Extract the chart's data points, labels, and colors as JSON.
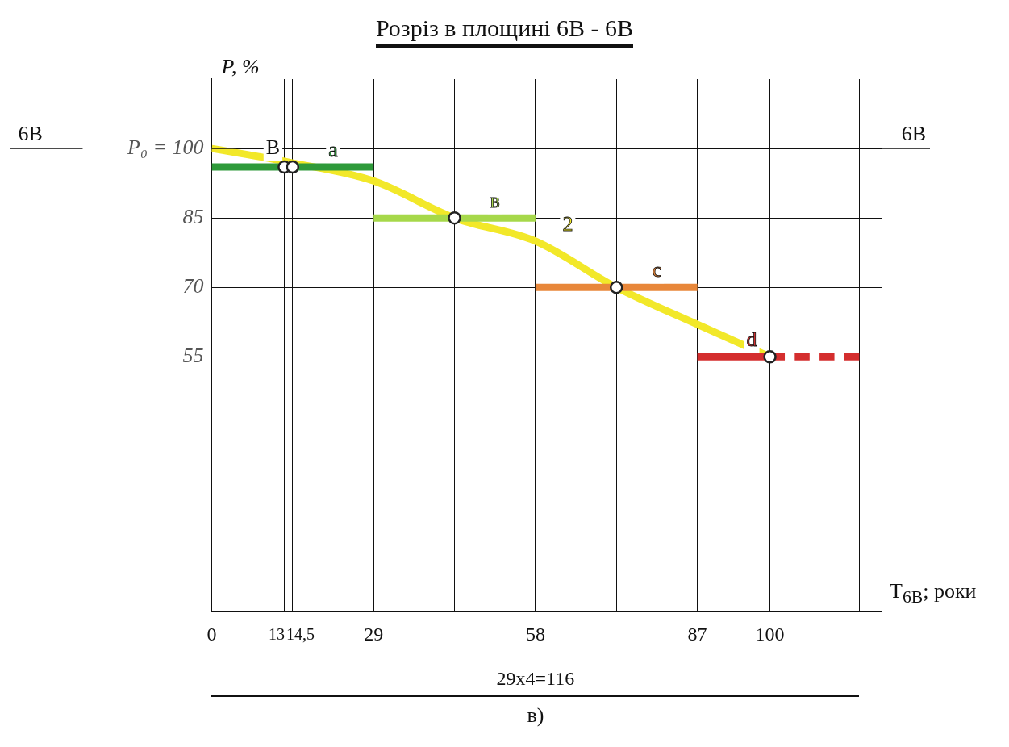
{
  "chart_data": {
    "type": "line",
    "title": "Розріз в площині 6В - 6В",
    "xlabel": "T$_{6В}$; роки",
    "ylabel": "P, %",
    "xlim": [
      0,
      120
    ],
    "xticks": [
      0,
      13,
      {
        "value": 14.5,
        "label": "14,5"
      },
      29,
      {
        "value": 43.5,
        "label": null
      },
      58,
      {
        "value": 72.5,
        "label": null
      },
      87,
      100,
      {
        "value": 116,
        "label": null
      }
    ],
    "ylim": [
      0,
      115
    ],
    "yticks": [
      55,
      70,
      85,
      {
        "value": 100,
        "label": "P₀ = 100"
      }
    ],
    "grid": true,
    "ref_lines": [
      {
        "axis": "y",
        "value": 100,
        "label": "6В"
      }
    ],
    "annotations": [
      {
        "text": "B",
        "x": 13,
        "y": 96
      },
      "29x4=116",
      "в)"
    ],
    "series": [
      {
        "name": "a",
        "type": "line",
        "color": "#2e9a3a",
        "x": [
          0,
          29
        ],
        "values": [
          96,
          96
        ],
        "marker": "none"
      },
      {
        "name": "в",
        "type": "line",
        "color": "#a6d84a",
        "x": [
          29,
          58
        ],
        "values": [
          85,
          85
        ],
        "marker": "none"
      },
      {
        "name": "c",
        "type": "line",
        "color": "#e8873a",
        "x": [
          58,
          87
        ],
        "values": [
          70,
          70
        ],
        "marker": "none"
      },
      {
        "name": "d",
        "type": "line",
        "color": "#d42e2e",
        "x": [
          87,
          100
        ],
        "values": [
          55,
          55
        ],
        "marker": "none"
      },
      {
        "type": "line",
        "color": "#d42e2e",
        "x": [
          100,
          116
        ],
        "values": [
          55,
          55
        ],
        "marker": "none",
        "line_style": "dashed"
      },
      {
        "name": "2",
        "type": "line",
        "color": "#f2e829",
        "x": [
          0,
          14,
          29,
          43.5,
          58,
          72.5,
          87,
          100
        ],
        "values": [
          100,
          97,
          93,
          85,
          80,
          70,
          62,
          55
        ],
        "marker": "none"
      },
      {
        "type": "scatter",
        "color": "#222222",
        "x": [
          13,
          14.5,
          43.5,
          72.5,
          100
        ],
        "values": [
          96,
          96,
          85,
          70,
          55
        ],
        "marker": "circle"
      }
    ]
  }
}
